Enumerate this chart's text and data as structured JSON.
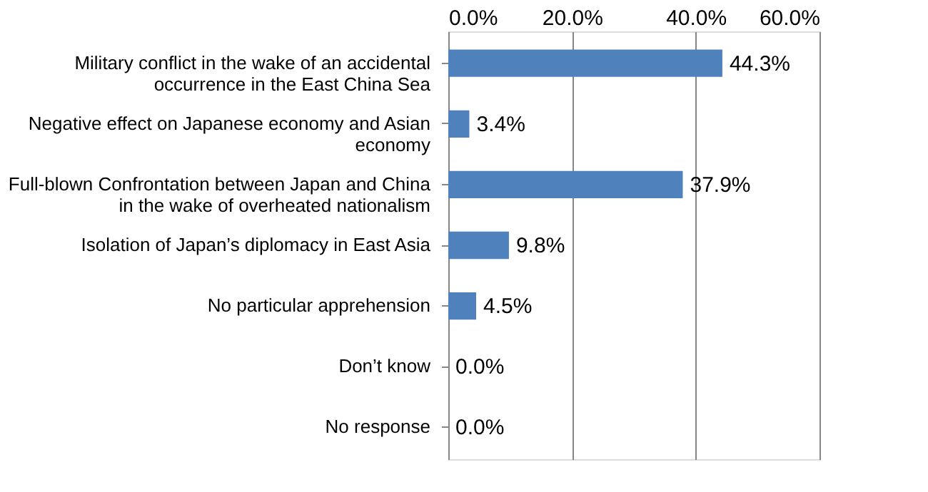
{
  "chart_data": {
    "type": "bar",
    "orientation": "horizontal",
    "categories": [
      "Military conflict in the wake of an accidental occurrence in the East China Sea",
      "Negative effect on Japanese economy and Asian economy",
      "Full-blown Confrontation between Japan and China in the wake of overheated nationalism",
      "Isolation of Japan’s diplomacy in East Asia",
      "No particular apprehension",
      "Don’t know",
      "No response"
    ],
    "values": [
      44.3,
      3.4,
      37.9,
      9.8,
      4.5,
      0.0,
      0.0
    ],
    "value_labels": [
      "44.3%",
      "3.4%",
      "37.9%",
      "9.8%",
      "4.5%",
      "0.0%",
      "0.0%"
    ],
    "color": "#4f81bd",
    "xlim": [
      0,
      60
    ],
    "xticks": [
      {
        "value": 0,
        "label": "0.0%"
      },
      {
        "value": 20,
        "label": "20.0%"
      },
      {
        "value": 40,
        "label": "40.0%"
      },
      {
        "value": 60,
        "label": "60.0%"
      }
    ],
    "grid": "x"
  }
}
